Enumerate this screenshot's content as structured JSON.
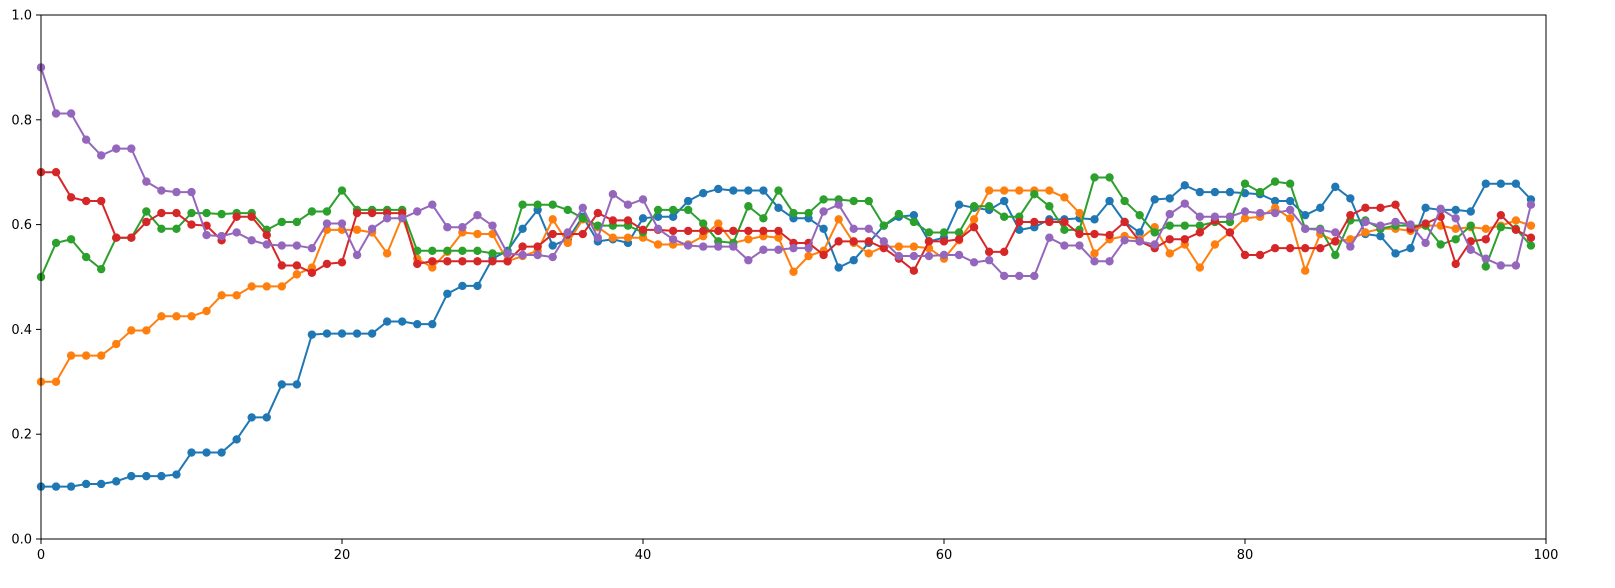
{
  "chart_data": {
    "type": "line",
    "title": "",
    "xlabel": "",
    "ylabel": "",
    "xlim": [
      0,
      100
    ],
    "ylim": [
      0,
      1.0
    ],
    "grid": false,
    "legend": "none",
    "marker": "circle",
    "x_ticks": [
      0,
      20,
      40,
      60,
      80,
      100
    ],
    "y_ticks": [
      0.0,
      0.2,
      0.4,
      0.6,
      0.8,
      1.0
    ],
    "x_tick_labels": [
      "0",
      "20",
      "40",
      "60",
      "80",
      "100"
    ],
    "y_tick_labels": [
      "0.0",
      "0.2",
      "0.4",
      "0.6",
      "0.8",
      "1.0"
    ],
    "x": [
      0,
      1,
      2,
      3,
      4,
      5,
      6,
      7,
      8,
      9,
      10,
      11,
      12,
      13,
      14,
      15,
      16,
      17,
      18,
      19,
      20,
      21,
      22,
      23,
      24,
      25,
      26,
      27,
      28,
      29,
      30,
      31,
      32,
      33,
      34,
      35,
      36,
      37,
      38,
      39,
      40,
      41,
      42,
      43,
      44,
      45,
      46,
      47,
      48,
      49,
      50,
      51,
      52,
      53,
      54,
      55,
      56,
      57,
      58,
      59,
      60,
      61,
      62,
      63,
      64,
      65,
      66,
      67,
      68,
      69,
      70,
      71,
      72,
      73,
      74,
      75,
      76,
      77,
      78,
      79,
      80,
      81,
      82,
      83,
      84,
      85,
      86,
      87,
      88,
      89,
      90,
      91,
      92,
      93,
      94,
      95,
      96,
      97,
      98,
      99
    ],
    "series": [
      {
        "color": "#1f77b4",
        "values": [
          0.1,
          0.1,
          0.1,
          0.105,
          0.105,
          0.11,
          0.12,
          0.12,
          0.12,
          0.123,
          0.165,
          0.165,
          0.165,
          0.19,
          0.232,
          0.232,
          0.295,
          0.295,
          0.39,
          0.392,
          0.392,
          0.392,
          0.392,
          0.415,
          0.415,
          0.41,
          0.41,
          0.468,
          0.483,
          0.483,
          0.535,
          0.55,
          0.592,
          0.628,
          0.56,
          0.572,
          0.615,
          0.568,
          0.572,
          0.565,
          0.612,
          0.615,
          0.615,
          0.645,
          0.66,
          0.668,
          0.665,
          0.665,
          0.665,
          0.632,
          0.612,
          0.612,
          0.592,
          0.518,
          0.532,
          0.565,
          0.598,
          0.615,
          0.618,
          0.568,
          0.575,
          0.638,
          0.632,
          0.628,
          0.645,
          0.59,
          0.595,
          0.61,
          0.61,
          0.612,
          0.61,
          0.645,
          0.605,
          0.585,
          0.648,
          0.65,
          0.675,
          0.662,
          0.662,
          0.662,
          0.66,
          0.658,
          0.645,
          0.645,
          0.618,
          0.632,
          0.672,
          0.65,
          0.582,
          0.578,
          0.545,
          0.555,
          0.632,
          0.628,
          0.628,
          0.625,
          0.678,
          0.678,
          0.678,
          0.648
        ]
      },
      {
        "color": "#ff7f0e",
        "values": [
          0.3,
          0.3,
          0.35,
          0.35,
          0.35,
          0.372,
          0.398,
          0.398,
          0.425,
          0.425,
          0.425,
          0.435,
          0.465,
          0.465,
          0.482,
          0.482,
          0.482,
          0.505,
          0.518,
          0.59,
          0.59,
          0.59,
          0.585,
          0.545,
          0.615,
          0.535,
          0.518,
          0.548,
          0.585,
          0.582,
          0.582,
          0.53,
          0.54,
          0.55,
          0.61,
          0.565,
          0.61,
          0.595,
          0.575,
          0.575,
          0.575,
          0.562,
          0.562,
          0.562,
          0.578,
          0.602,
          0.565,
          0.572,
          0.578,
          0.575,
          0.51,
          0.54,
          0.55,
          0.61,
          0.565,
          0.545,
          0.558,
          0.558,
          0.558,
          0.555,
          0.535,
          0.57,
          0.61,
          0.665,
          0.665,
          0.665,
          0.665,
          0.665,
          0.652,
          0.622,
          0.545,
          0.572,
          0.578,
          0.572,
          0.595,
          0.545,
          0.562,
          0.518,
          0.562,
          0.585,
          0.612,
          0.615,
          0.632,
          0.612,
          0.512,
          0.582,
          0.568,
          0.572,
          0.585,
          0.592,
          0.592,
          0.588,
          0.598,
          0.598,
          0.592,
          0.595,
          0.592,
          0.598,
          0.608,
          0.598
        ]
      },
      {
        "color": "#2ca02c",
        "values": [
          0.5,
          0.565,
          0.572,
          0.538,
          0.515,
          0.575,
          0.575,
          0.625,
          0.592,
          0.592,
          0.622,
          0.622,
          0.62,
          0.622,
          0.622,
          0.59,
          0.605,
          0.605,
          0.625,
          0.625,
          0.665,
          0.628,
          0.628,
          0.628,
          0.628,
          0.55,
          0.55,
          0.55,
          0.55,
          0.55,
          0.545,
          0.545,
          0.638,
          0.638,
          0.638,
          0.628,
          0.612,
          0.598,
          0.598,
          0.598,
          0.585,
          0.628,
          0.628,
          0.628,
          0.602,
          0.568,
          0.565,
          0.635,
          0.612,
          0.665,
          0.622,
          0.622,
          0.648,
          0.648,
          0.645,
          0.645,
          0.598,
          0.62,
          0.605,
          0.585,
          0.585,
          0.585,
          0.635,
          0.635,
          0.615,
          0.615,
          0.658,
          0.635,
          0.59,
          0.59,
          0.69,
          0.69,
          0.645,
          0.618,
          0.585,
          0.598,
          0.598,
          0.598,
          0.605,
          0.605,
          0.678,
          0.662,
          0.682,
          0.678,
          0.592,
          0.592,
          0.542,
          0.608,
          0.608,
          0.592,
          0.598,
          0.598,
          0.598,
          0.562,
          0.572,
          0.598,
          0.52,
          0.595,
          0.592,
          0.56
        ]
      },
      {
        "color": "#d62728",
        "values": [
          0.7,
          0.7,
          0.652,
          0.645,
          0.645,
          0.575,
          0.575,
          0.605,
          0.622,
          0.622,
          0.6,
          0.598,
          0.57,
          0.615,
          0.615,
          0.58,
          0.522,
          0.522,
          0.508,
          0.525,
          0.528,
          0.622,
          0.622,
          0.622,
          0.622,
          0.525,
          0.53,
          0.53,
          0.53,
          0.53,
          0.53,
          0.53,
          0.558,
          0.558,
          0.582,
          0.582,
          0.582,
          0.622,
          0.608,
          0.608,
          0.59,
          0.59,
          0.588,
          0.588,
          0.588,
          0.588,
          0.588,
          0.588,
          0.588,
          0.588,
          0.565,
          0.565,
          0.542,
          0.568,
          0.568,
          0.568,
          0.555,
          0.535,
          0.512,
          0.568,
          0.568,
          0.572,
          0.595,
          0.548,
          0.548,
          0.605,
          0.605,
          0.605,
          0.605,
          0.582,
          0.582,
          0.58,
          0.605,
          0.568,
          0.555,
          0.572,
          0.572,
          0.585,
          0.608,
          0.585,
          0.542,
          0.542,
          0.555,
          0.555,
          0.555,
          0.555,
          0.568,
          0.618,
          0.632,
          0.632,
          0.638,
          0.592,
          0.602,
          0.615,
          0.525,
          0.568,
          0.572,
          0.618,
          0.59,
          0.575
        ]
      },
      {
        "color": "#9467bd",
        "values": [
          0.9,
          0.812,
          0.812,
          0.762,
          0.732,
          0.745,
          0.745,
          0.682,
          0.665,
          0.662,
          0.662,
          0.58,
          0.578,
          0.585,
          0.57,
          0.562,
          0.56,
          0.56,
          0.555,
          0.602,
          0.602,
          0.542,
          0.592,
          0.612,
          0.612,
          0.625,
          0.638,
          0.595,
          0.595,
          0.618,
          0.598,
          0.545,
          0.542,
          0.542,
          0.538,
          0.585,
          0.632,
          0.575,
          0.658,
          0.638,
          0.648,
          0.592,
          0.572,
          0.56,
          0.558,
          0.558,
          0.558,
          0.532,
          0.552,
          0.552,
          0.555,
          0.555,
          0.625,
          0.638,
          0.592,
          0.592,
          0.568,
          0.54,
          0.54,
          0.54,
          0.542,
          0.542,
          0.528,
          0.532,
          0.502,
          0.502,
          0.502,
          0.575,
          0.56,
          0.56,
          0.53,
          0.53,
          0.57,
          0.568,
          0.562,
          0.62,
          0.64,
          0.615,
          0.615,
          0.615,
          0.625,
          0.622,
          0.622,
          0.628,
          0.592,
          0.59,
          0.585,
          0.558,
          0.605,
          0.598,
          0.605,
          0.6,
          0.565,
          0.63,
          0.612,
          0.552,
          0.535,
          0.522,
          0.522,
          0.638
        ]
      }
    ]
  }
}
